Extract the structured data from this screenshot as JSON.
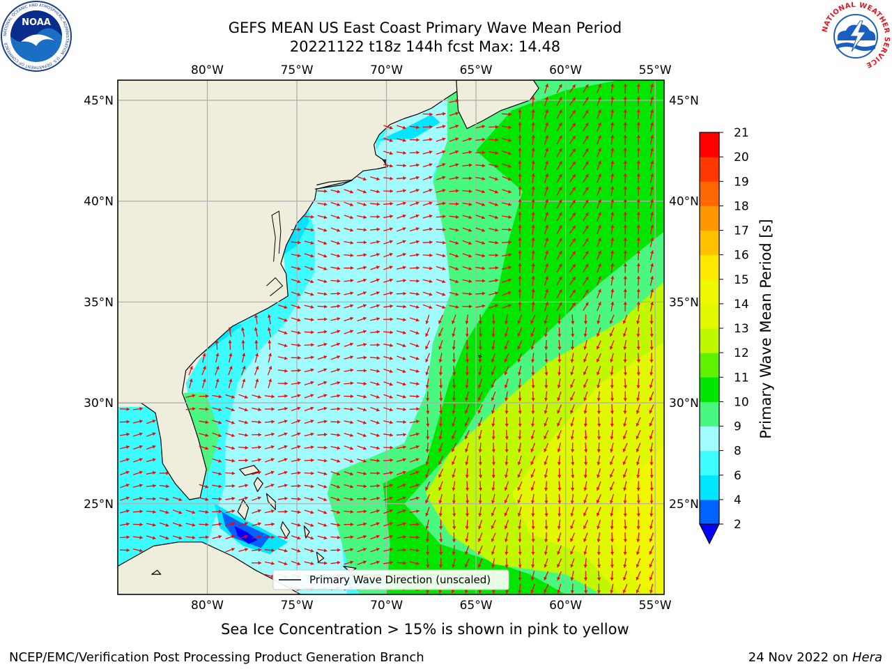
{
  "header": {
    "title_line1": "GEFS MEAN US East Coast Primary Wave Mean Period",
    "title_line2": "20221122 t18z 144h fcst   Max: 14.48"
  },
  "logos": {
    "noaa_text": "NOAA",
    "noaa_ring": "NATIONAL OCEANIC AND ATMOSPHERIC ADMINISTRATION · U.S. DEPARTMENT OF COMMERCE",
    "nws_ring": "NATIONAL WEATHER SERVICE"
  },
  "map": {
    "lon_ticks": [
      "80°W",
      "75°W",
      "70°W",
      "65°W",
      "60°W",
      "55°W"
    ],
    "lat_ticks": [
      "45°N",
      "40°N",
      "35°N",
      "30°N",
      "25°N"
    ],
    "lon_range": [
      -85,
      -54.5
    ],
    "lat_range": [
      20.5,
      46
    ],
    "legend_label": "Primary Wave Direction (unscaled)",
    "colors": {
      "land": "#efeedd",
      "arrow": "#ff0000",
      "grid": "#b0b0b0"
    }
  },
  "colorbar": {
    "label": "Primary Wave Mean Period [s]",
    "ticks": [
      "2",
      "4",
      "6",
      "8",
      "9",
      "10",
      "11",
      "12",
      "13",
      "14",
      "15",
      "16",
      "17",
      "18",
      "19",
      "20",
      "21"
    ],
    "colors": [
      "#0063ff",
      "#00e6ff",
      "#3cfcff",
      "#a0fcff",
      "#48f880",
      "#00e600",
      "#5ef200",
      "#c0f800",
      "#e0f800",
      "#f0f800",
      "#ffe800",
      "#ffc000",
      "#ff9800",
      "#ff6800",
      "#ff3800",
      "#ff0000"
    ],
    "under_color": "#0000ff"
  },
  "note": "Sea Ice Concentration > 15% is shown in pink to yellow",
  "footer": {
    "left": "NCEP/EMC/Verification Post Processing Product Generation Branch",
    "right_date": "24 Nov 2022 on ",
    "right_host": "Hera"
  }
}
